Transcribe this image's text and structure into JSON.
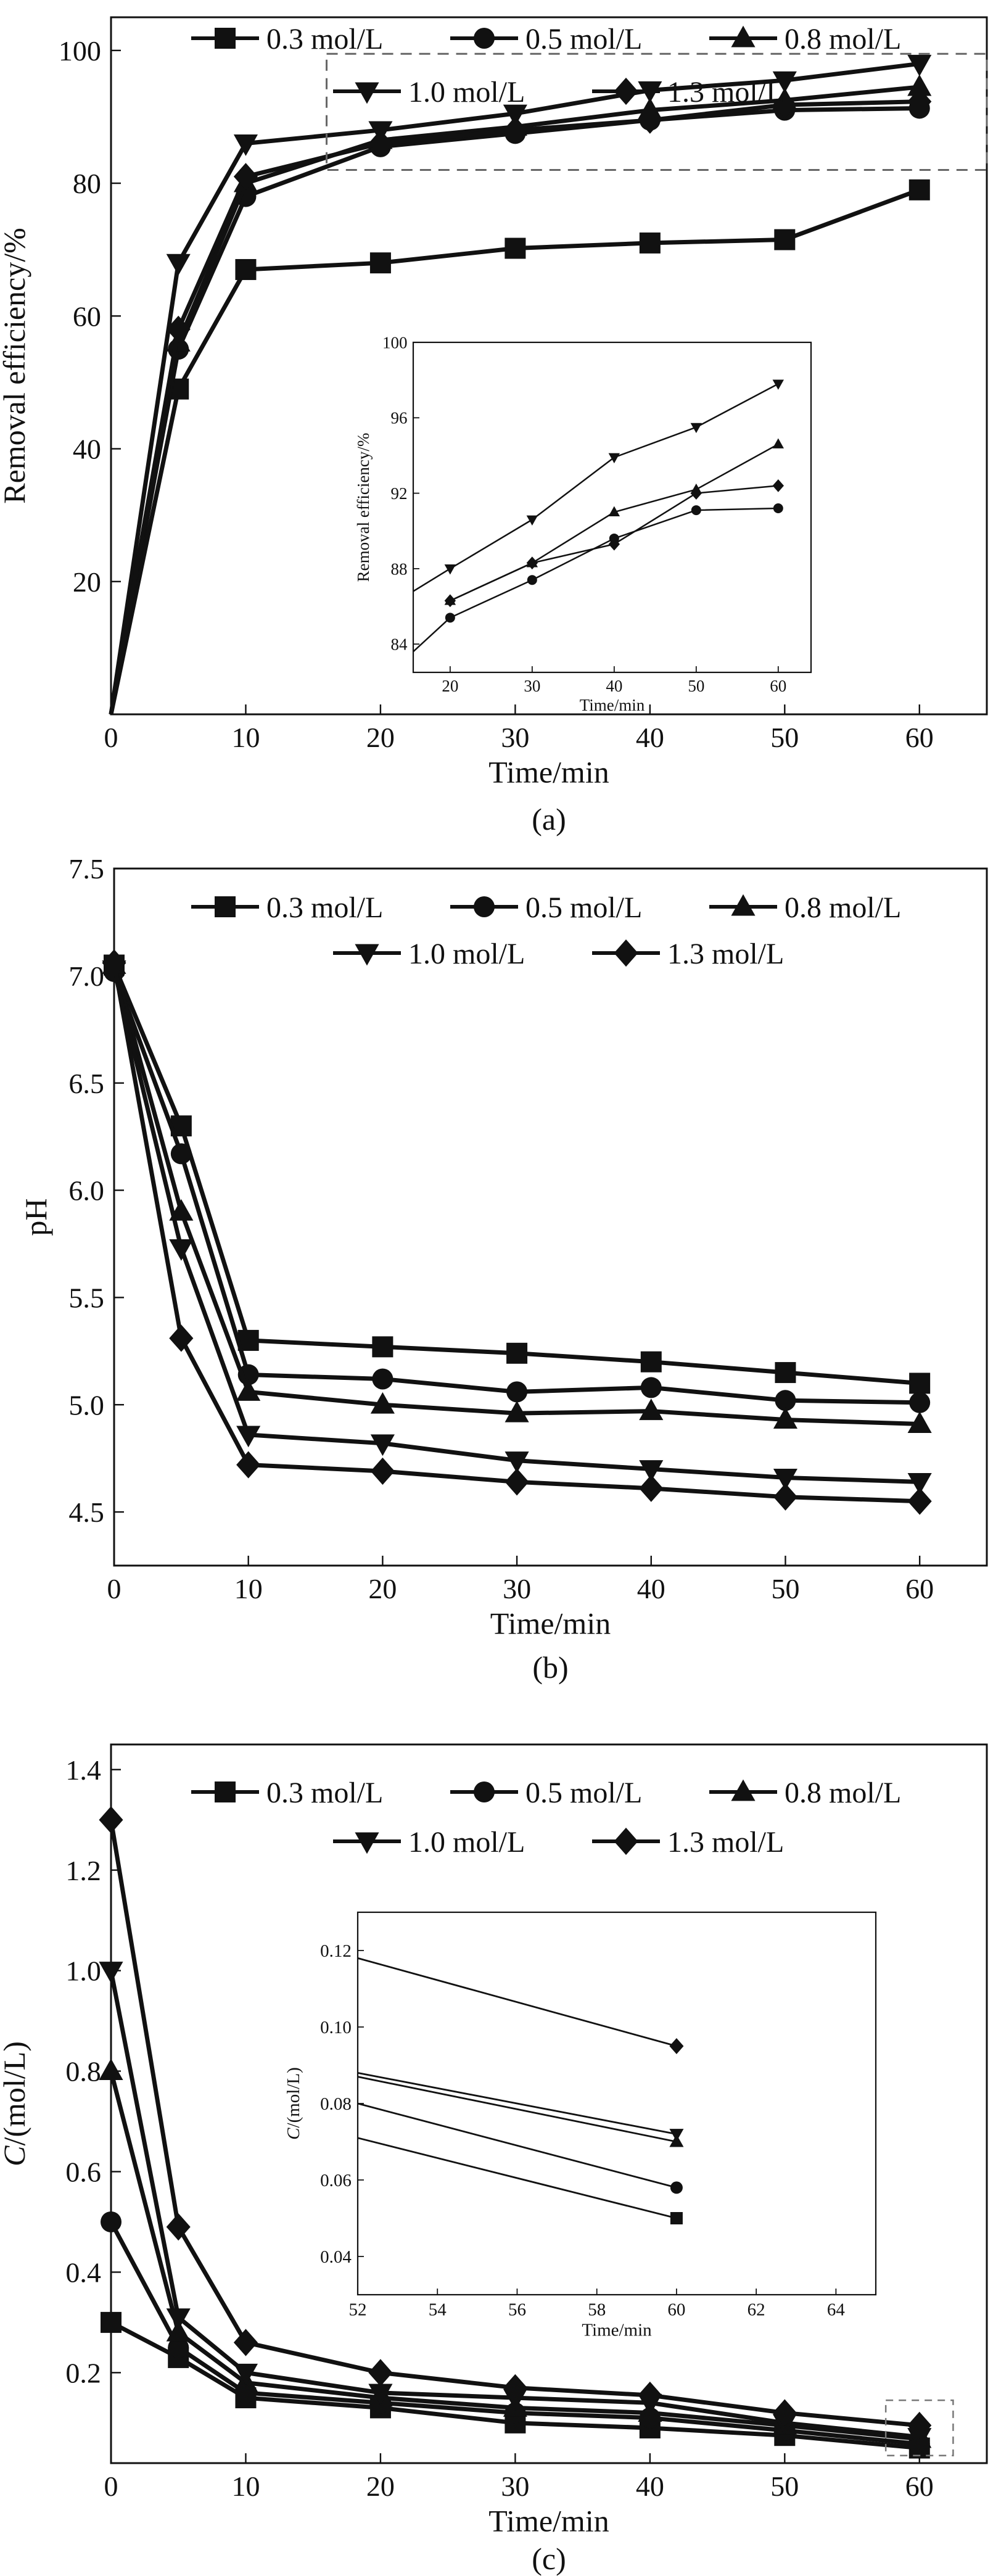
{
  "legend_labels": [
    "0.3 mol/L",
    "0.5 mol/L",
    "0.8 mol/L",
    "1.0 mol/L",
    "1.3 mol/L"
  ],
  "chart_data": [
    {
      "id": "a",
      "type": "line",
      "caption": "(a)",
      "xlabel": "Time/min",
      "ylabel": "Removal efficiency/%",
      "xlim": [
        0,
        65
      ],
      "ylim": [
        0,
        105
      ],
      "xticks": [
        0,
        10,
        20,
        30,
        40,
        50,
        60
      ],
      "yticks": [
        20,
        40,
        60,
        80,
        100
      ],
      "legend": "top",
      "x": [
        0,
        5,
        10,
        20,
        30,
        40,
        50,
        60
      ],
      "series": [
        {
          "name": "0.3 mol/L",
          "marker": "square",
          "values": [
            0,
            49,
            67,
            68,
            70.2,
            71,
            71.5,
            79
          ]
        },
        {
          "name": "0.5 mol/L",
          "marker": "circle",
          "values": [
            0,
            55,
            78,
            85.5,
            87.5,
            89.5,
            91,
            91.3
          ]
        },
        {
          "name": "0.8 mol/L",
          "marker": "triangle-up",
          "values": [
            0,
            56,
            80,
            86.5,
            88.5,
            91,
            92.5,
            94.5
          ]
        },
        {
          "name": "1.0 mol/L",
          "marker": "triangle-down",
          "values": [
            0,
            68,
            86,
            88,
            90.5,
            94,
            95.5,
            98
          ]
        },
        {
          "name": "1.3 mol/L",
          "marker": "diamond",
          "values": [
            0,
            58,
            81,
            86,
            88,
            89.5,
            91.8,
            92.3
          ]
        }
      ],
      "highlight_box": {
        "x": [
          16,
          65
        ],
        "y": [
          82,
          99.5
        ]
      },
      "inset": {
        "xlabel": "Time/min",
        "ylabel": "Removal efficiency/%",
        "xlim": [
          15.5,
          64
        ],
        "ylim": [
          82.5,
          100
        ],
        "xticks": [
          20,
          30,
          40,
          50,
          60
        ],
        "yticks": [
          84,
          88,
          92,
          96,
          100
        ],
        "x": [
          20,
          30,
          40,
          50,
          60
        ],
        "series": [
          {
            "name": "0.3 mol/L",
            "marker": "none",
            "values": [
              null,
              null,
              null,
              null,
              null
            ]
          },
          {
            "name": "0.5 mol/L",
            "marker": "circle",
            "values": [
              85.4,
              87.4,
              89.6,
              91.1,
              91.2
            ]
          },
          {
            "name": "0.8 mol/L",
            "marker": "triangle-up",
            "values": [
              86.3,
              88.3,
              91.0,
              92.2,
              94.6
            ]
          },
          {
            "name": "1.0 mol/L",
            "marker": "triangle-down",
            "values": [
              88.0,
              90.6,
              93.9,
              95.5,
              97.8
            ]
          },
          {
            "name": "1.3 mol/L",
            "marker": "diamond",
            "values": [
              86.3,
              88.3,
              89.3,
              92.0,
              92.4
            ]
          }
        ],
        "lead_in": [
          {
            "series": 3,
            "from": [
              15.5,
              86.8
            ]
          },
          {
            "series": 1,
            "from": [
              15.5,
              83.6
            ]
          }
        ]
      }
    },
    {
      "id": "b",
      "type": "line",
      "caption": "(b)",
      "xlabel": "Time/min",
      "ylabel": "pH",
      "xlim": [
        0,
        65
      ],
      "ylim": [
        4.25,
        7.5
      ],
      "xticks": [
        0,
        10,
        20,
        30,
        40,
        50,
        60
      ],
      "yticks": [
        4.5,
        5.0,
        5.5,
        6.0,
        6.5,
        7.0,
        7.5
      ],
      "ytick_labels": [
        "4.5",
        "5.0",
        "5.5",
        "6.0",
        "6.5",
        "7.0",
        "7.5"
      ],
      "legend": "top",
      "x": [
        0,
        5,
        10,
        20,
        30,
        40,
        50,
        60
      ],
      "series": [
        {
          "name": "0.3 mol/L",
          "marker": "square",
          "values": [
            7.05,
            6.3,
            5.3,
            5.27,
            5.24,
            5.2,
            5.15,
            5.1
          ]
        },
        {
          "name": "0.5 mol/L",
          "marker": "circle",
          "values": [
            7.02,
            6.17,
            5.14,
            5.12,
            5.06,
            5.08,
            5.02,
            5.01
          ]
        },
        {
          "name": "0.8 mol/L",
          "marker": "triangle-up",
          "values": [
            7.05,
            5.9,
            5.06,
            5.0,
            4.96,
            4.97,
            4.93,
            4.91
          ]
        },
        {
          "name": "1.0 mol/L",
          "marker": "triangle-down",
          "values": [
            7.03,
            5.73,
            4.86,
            4.82,
            4.74,
            4.7,
            4.66,
            4.64
          ]
        },
        {
          "name": "1.3 mol/L",
          "marker": "diamond",
          "values": [
            7.06,
            5.31,
            4.72,
            4.69,
            4.64,
            4.61,
            4.57,
            4.55
          ]
        }
      ]
    },
    {
      "id": "c",
      "type": "line",
      "caption": "(c)",
      "xlabel": "Time/min",
      "ylabel": "C/(mol/L)",
      "ylabel_italic": "C",
      "ylabel_rest": "/(mol/L)",
      "xlim": [
        0,
        65
      ],
      "ylim": [
        0.02,
        1.45
      ],
      "xticks": [
        0,
        10,
        20,
        30,
        40,
        50,
        60
      ],
      "yticks": [
        0.2,
        0.4,
        0.6,
        0.8,
        1.0,
        1.2,
        1.4
      ],
      "ytick_labels": [
        "0.2",
        "0.4",
        "0.6",
        "0.8",
        "1.0",
        "1.2",
        "1.4"
      ],
      "legend": "top",
      "x": [
        0,
        5,
        10,
        20,
        30,
        40,
        50,
        60
      ],
      "series": [
        {
          "name": "0.3 mol/L",
          "marker": "square",
          "values": [
            0.3,
            0.23,
            0.15,
            0.13,
            0.1,
            0.09,
            0.075,
            0.05
          ]
        },
        {
          "name": "0.5 mol/L",
          "marker": "circle",
          "values": [
            0.5,
            0.25,
            0.16,
            0.14,
            0.12,
            0.11,
            0.085,
            0.058
          ]
        },
        {
          "name": "0.8 mol/L",
          "marker": "triangle-up",
          "values": [
            0.8,
            0.28,
            0.18,
            0.15,
            0.13,
            0.12,
            0.095,
            0.068
          ]
        },
        {
          "name": "1.0 mol/L",
          "marker": "triangle-down",
          "values": [
            1.0,
            0.31,
            0.2,
            0.16,
            0.15,
            0.14,
            0.1,
            0.072
          ]
        },
        {
          "name": "1.3 mol/L",
          "marker": "diamond",
          "values": [
            1.3,
            0.49,
            0.26,
            0.2,
            0.17,
            0.155,
            0.12,
            0.095
          ]
        }
      ],
      "highlight_box": {
        "x": [
          57.5,
          62.5
        ],
        "y": [
          0.035,
          0.145
        ]
      },
      "inset": {
        "xlabel": "Time/min",
        "ylabel": "C/(mol/L)",
        "ylabel_italic": "C",
        "ylabel_rest": "/(mol/L)",
        "xlim": [
          52,
          65
        ],
        "ylim": [
          0.03,
          0.13
        ],
        "xticks": [
          52,
          54,
          56,
          58,
          60,
          62,
          64
        ],
        "yticks": [
          0.04,
          0.06,
          0.08,
          0.1,
          0.12
        ],
        "ytick_labels": [
          "0.04",
          "0.06",
          "0.08",
          "0.10",
          "0.12"
        ],
        "x": [
          52,
          60
        ],
        "series": [
          {
            "name": "0.3 mol/L",
            "marker": "square",
            "values": [
              0.071,
              0.05
            ]
          },
          {
            "name": "0.5 mol/L",
            "marker": "circle",
            "values": [
              0.08,
              0.058
            ]
          },
          {
            "name": "0.8 mol/L",
            "marker": "triangle-up",
            "values": [
              0.087,
              0.07
            ]
          },
          {
            "name": "1.0 mol/L",
            "marker": "triangle-down",
            "values": [
              0.088,
              0.072
            ]
          },
          {
            "name": "1.3 mol/L",
            "marker": "diamond",
            "values": [
              0.118,
              0.095
            ]
          }
        ]
      }
    }
  ]
}
